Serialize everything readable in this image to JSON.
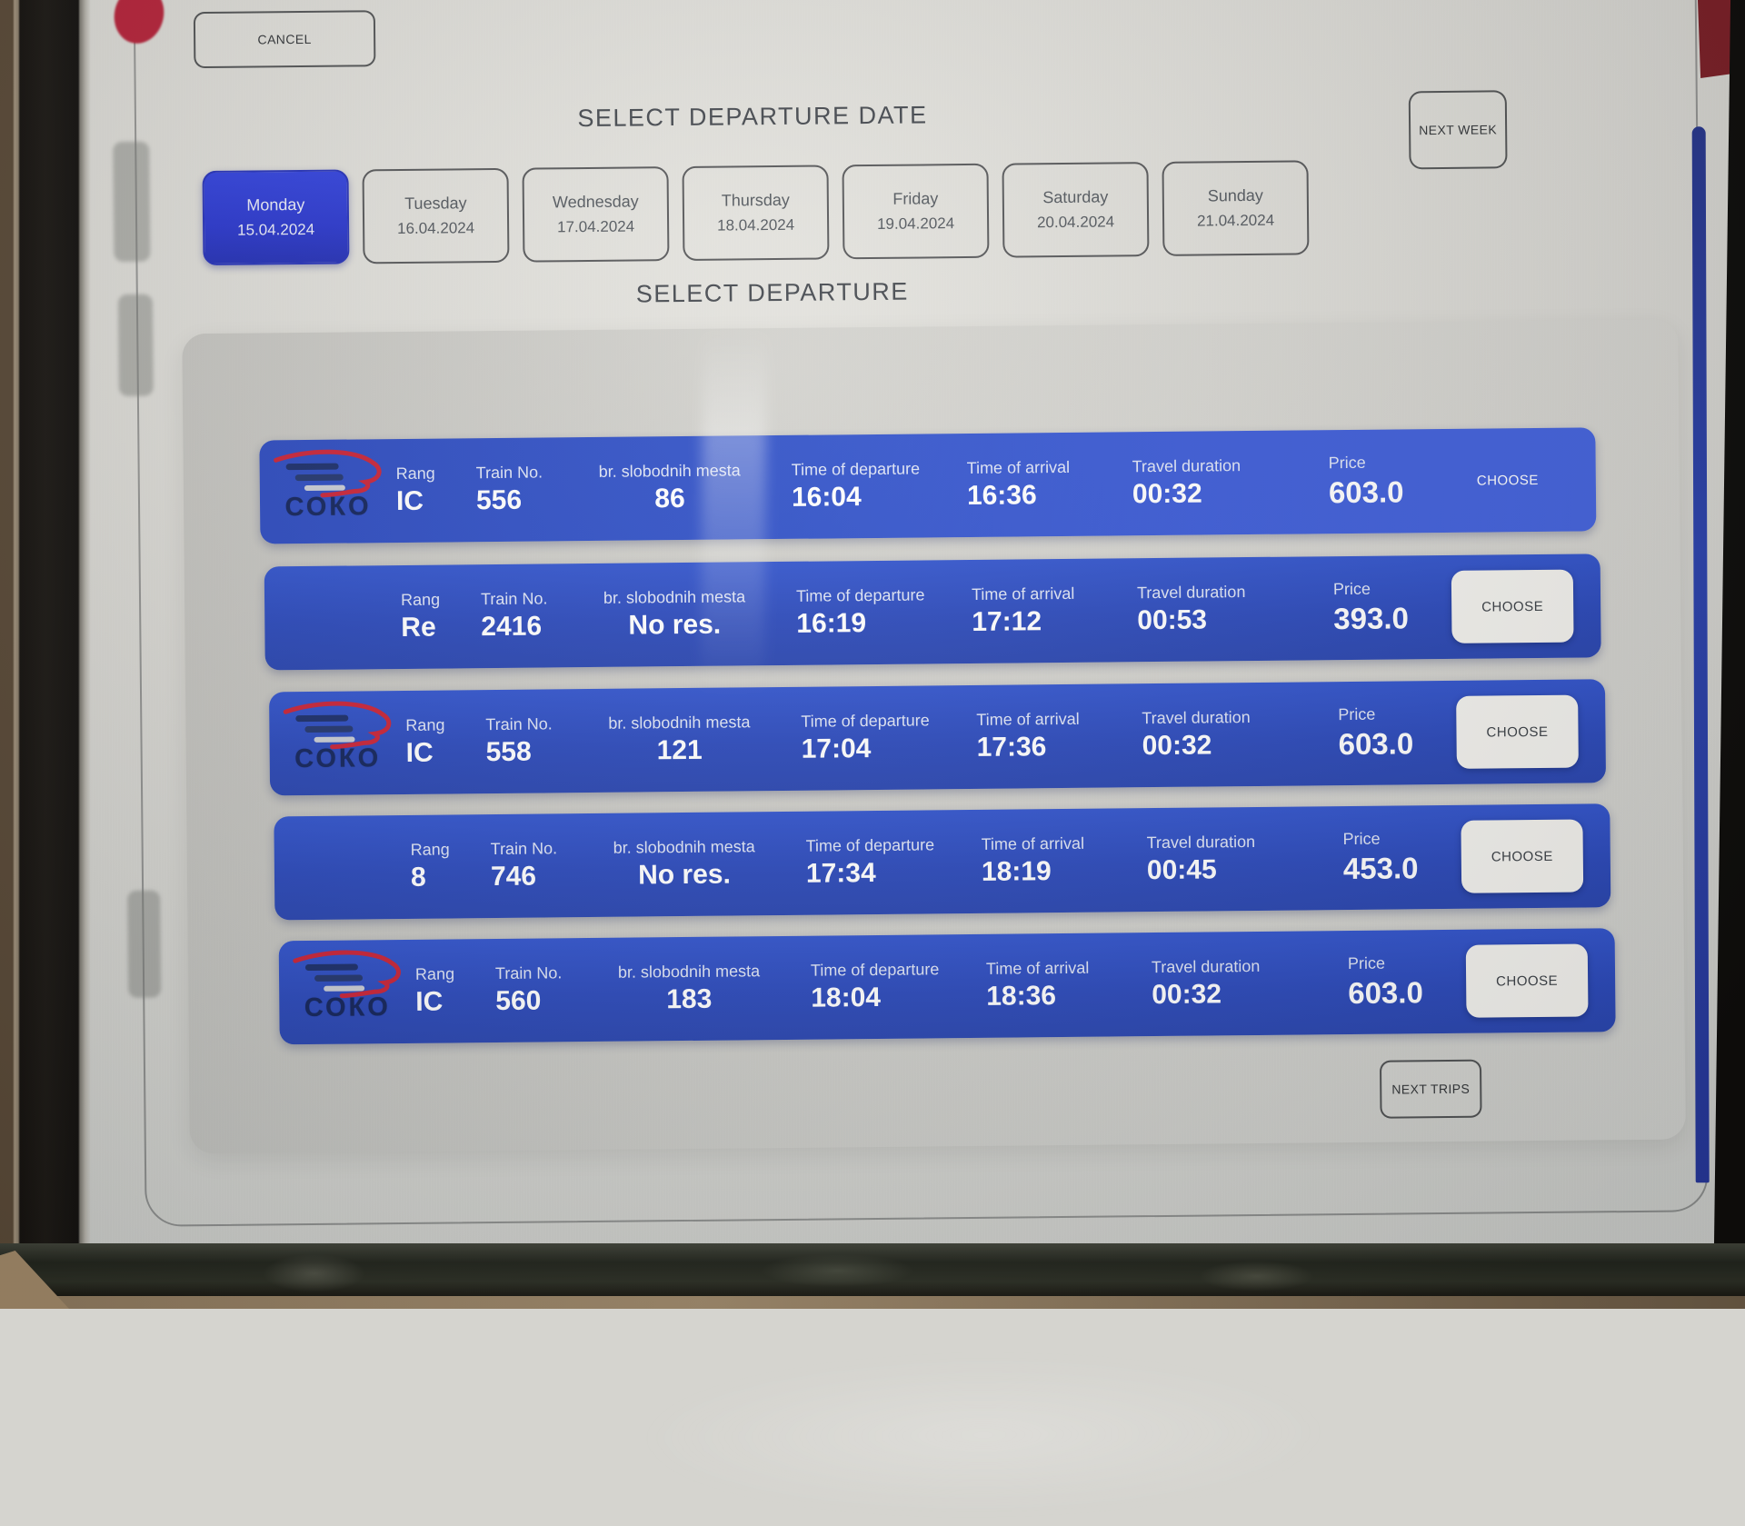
{
  "header": {
    "cancel_label": "CANCEL",
    "next_week_label": "NEXT WEEK",
    "select_date_title": "SELECT DEPARTURE DATE",
    "select_departure_title": "SELECT DEPARTURE"
  },
  "dates": [
    {
      "day": "Monday",
      "date": "15.04.2024",
      "selected": true
    },
    {
      "day": "Tuesday",
      "date": "16.04.2024",
      "selected": false
    },
    {
      "day": "Wednesday",
      "date": "17.04.2024",
      "selected": false
    },
    {
      "day": "Thursday",
      "date": "18.04.2024",
      "selected": false
    },
    {
      "day": "Friday",
      "date": "19.04.2024",
      "selected": false
    },
    {
      "day": "Saturday",
      "date": "20.04.2024",
      "selected": false
    },
    {
      "day": "Sunday",
      "date": "21.04.2024",
      "selected": false
    }
  ],
  "trips": {
    "columns": {
      "rang": "Rang",
      "train_no": "Train No.",
      "seats": "br. slobodnih mesta",
      "departure": "Time of departure",
      "arrival": "Time of arrival",
      "duration": "Travel duration",
      "price": "Price"
    },
    "choose_label": "CHOOSE",
    "rows": [
      {
        "operator_logo": "СОКО",
        "rang": "IC",
        "train_no": "556",
        "seats": "86",
        "departure": "16:04",
        "arrival": "16:36",
        "duration": "00:32",
        "price": "603.0",
        "choose_variant": "plain"
      },
      {
        "operator_logo": null,
        "rang": "Re",
        "train_no": "2416",
        "seats": "No res.",
        "departure": "16:19",
        "arrival": "17:12",
        "duration": "00:53",
        "price": "393.0",
        "choose_variant": "boxed"
      },
      {
        "operator_logo": "СОКО",
        "rang": "IC",
        "train_no": "558",
        "seats": "121",
        "departure": "17:04",
        "arrival": "17:36",
        "duration": "00:32",
        "price": "603.0",
        "choose_variant": "boxed"
      },
      {
        "operator_logo": null,
        "rang": "8",
        "train_no": "746",
        "seats": "No res.",
        "departure": "17:34",
        "arrival": "18:19",
        "duration": "00:45",
        "price": "453.0",
        "choose_variant": "boxed"
      },
      {
        "operator_logo": "СОКО",
        "rang": "IC",
        "train_no": "560",
        "seats": "183",
        "departure": "18:04",
        "arrival": "18:36",
        "duration": "00:32",
        "price": "603.0",
        "choose_variant": "boxed"
      }
    ]
  },
  "footer": {
    "next_trips_label": "NEXT TRIPS"
  },
  "colors": {
    "row_blue": "#2e4ec4",
    "selected_day_blue": "#2b38cd",
    "logo_red": "#c92539",
    "logo_navy": "#14255c",
    "choose_button_bg": "#f4f3ef",
    "screen_text": "#45494f"
  }
}
